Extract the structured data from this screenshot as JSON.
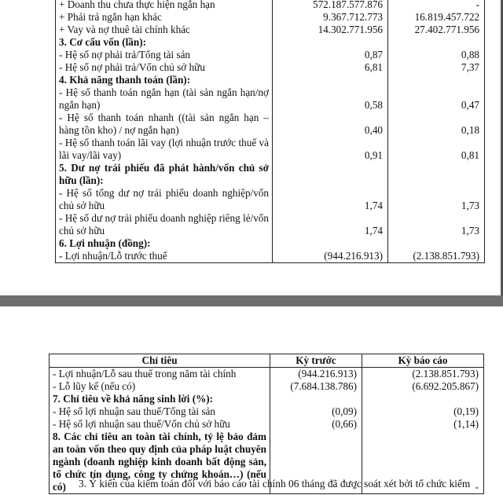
{
  "top_table": {
    "rows": [
      [
        "+ Doanh thu chưa thực hiện ngắn hạn",
        "572.187.577.876",
        "-"
      ],
      [
        "+ Phải trả ngắn hạn khác",
        "9.367.712.773",
        "16.819.457.722"
      ],
      [
        "+ Vay và nợ thuê tài chính khác",
        "14.302.771.956",
        "27.402.771.956"
      ],
      [
        "3. Cơ cấu vốn (lần):"
      ],
      [
        "- Hệ số nợ phải trả/Tổng tài sản",
        "0,87",
        "0,88"
      ],
      [
        "- Hệ số nợ phải trả/Vốn chủ sở hữu",
        "6,81",
        "7,37"
      ],
      [
        "4. Khả năng thanh toán (lần):"
      ],
      [
        "- Hệ số thanh toán ngắn hạn (tài sản ngắn hạn/nợ ngắn hạn)",
        "0,58",
        "0,47"
      ],
      [
        "- Hệ số thanh toán nhanh ((tài sản ngắn hạn – hàng tồn kho) / nợ ngắn hạn)",
        "0,40",
        "0,18"
      ],
      [
        "- Hệ số thanh toán lãi vay (lợi nhuận trước thuế và lãi vay/lãi vay)",
        "0,91",
        "0,81"
      ],
      [
        "5. Dư nợ trái phiếu đã phát hành/vốn chủ sở hữu (lần):"
      ],
      [
        "- Hệ số tổng dư nợ trái phiếu doanh nghiệp/vốn chủ sở hữu",
        "1,74",
        "1,73"
      ],
      [
        "- Hệ số dư nợ trái phiếu doanh nghiệp riêng lẻ/vốn chủ sở hữu",
        "1,74",
        "1,73"
      ],
      [
        "6. Lợi nhuận (đồng):"
      ],
      [
        "- Lợi nhuận/Lỗ trước thuế",
        "(944.216.913)",
        "(2.138.851.793)"
      ]
    ]
  },
  "bottom_table": {
    "header": [
      "Chỉ tiêu",
      "Kỳ trước",
      "Kỳ báo cáo"
    ],
    "rows": [
      [
        "- Lợi nhuận/Lỗ sau thuế trong năm tài chính",
        "(944.216.913)",
        "(2.138.851.793)"
      ],
      [
        "- Lỗ lũy kế (nếu có)",
        "(7.684.138.786)",
        "(6.692.205.867)"
      ],
      [
        "7. Chỉ tiêu về khả năng sinh lời (%):"
      ],
      [
        "- Hệ số lợi nhuận sau thuế/Tổng tài sản",
        "(0,09)",
        "(0,19)"
      ],
      [
        "- Hệ số lợi nhuận sau thuế/Vốn chủ sở hữu",
        "(0,66)",
        "(1,14)"
      ],
      [
        "8. Các chỉ tiêu an toàn tài chính, tỷ lệ bảo đảm an toàn vốn theo quy định của pháp luật chuyên ngành (doanh nghiệp kinh doanh bất động sản, tổ chức tín dụng, công ty chứng khoán…) (nếu có)",
        "-",
        "-"
      ]
    ]
  },
  "paragraph": "3. Ý kiến của kiểm toán đối với báo cáo tài chính 06 tháng đã được soát xét bởi tổ chức kiểm"
}
